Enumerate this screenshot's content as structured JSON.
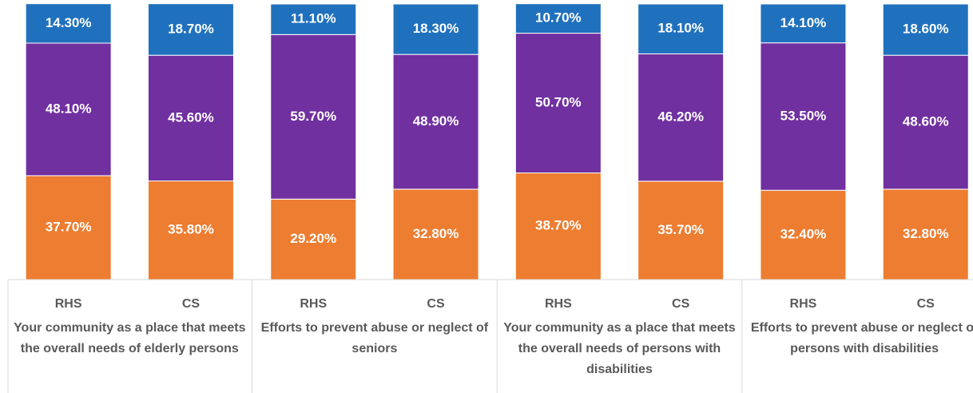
{
  "chart_data": {
    "type": "stacked_bar",
    "categories": [
      "RHS",
      "CS",
      "RHS",
      "CS",
      "RHS",
      "CS",
      "RHS",
      "CS"
    ],
    "groups": [
      {
        "label": "Your community as a place that meets the overall needs of elderly persons"
      },
      {
        "label": "Efforts to prevent abuse or neglect of seniors"
      },
      {
        "label": "Your community as a place that meets the overall needs of persons with disabilities"
      },
      {
        "label": "Efforts to prevent abuse or neglect of persons with disabilities"
      }
    ],
    "ylim": [
      0,
      100
    ],
    "series": [
      {
        "color": "#ed7d31",
        "values": [
          37.7,
          35.8,
          29.2,
          32.8,
          38.7,
          35.7,
          32.4,
          32.8
        ],
        "value_labels": [
          "37.70%",
          "35.80%",
          "29.20%",
          "32.80%",
          "38.70%",
          "35.70%",
          "32.40%",
          "32.80%"
        ]
      },
      {
        "color": "#7030a0",
        "values": [
          48.1,
          45.6,
          59.7,
          48.9,
          50.7,
          46.2,
          53.5,
          48.6
        ],
        "value_labels": [
          "48.10%",
          "45.60%",
          "59.70%",
          "48.90%",
          "50.70%",
          "46.20%",
          "53.50%",
          "48.60%"
        ]
      },
      {
        "color": "#2071bd",
        "values": [
          14.3,
          18.7,
          11.1,
          18.3,
          10.7,
          18.1,
          14.1,
          18.6
        ],
        "value_labels": [
          "14.30%",
          "18.70%",
          "11.10%",
          "18.30%",
          "10.70%",
          "18.10%",
          "14.10%",
          "18.60%"
        ]
      }
    ]
  }
}
